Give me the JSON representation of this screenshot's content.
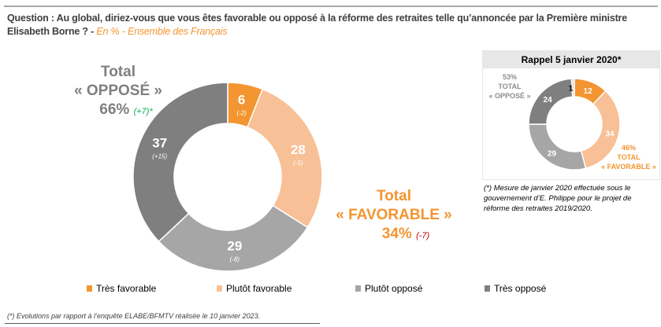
{
  "header": {
    "question": "Question : Au global, diriez-vous que vous êtes favorable ou opposé à la réforme des retraites telle qu’annoncée par la Première ministre Elisabeth Borne ? - ",
    "subtitle": "En % - Ensemble des Français"
  },
  "totals": {
    "opposed": {
      "line1": "Total",
      "line2": "« OPPOSÉ »",
      "value": "66%",
      "evolution": "(+7)*"
    },
    "favorable": {
      "line1": "Total",
      "line2": "« FAVORABLE »",
      "value": "34%",
      "evolution": "(-7)"
    }
  },
  "chart_data": [
    {
      "type": "pie",
      "donut": true,
      "categories": [
        "Très favorable",
        "Plutôt favorable",
        "Plutôt opposé",
        "Très opposé"
      ],
      "values": [
        6,
        28,
        29,
        37
      ],
      "evolutions": [
        "(-2)",
        "(-5)",
        "(-8)",
        "(+15)"
      ],
      "colors": [
        "#F39530",
        "#F8C096",
        "#A6A6A6",
        "#7F7F7F"
      ],
      "legend": "bottom"
    },
    {
      "type": "pie",
      "donut": true,
      "title": "Rappel 5 janvier 2020*",
      "categories": [
        "Très favorable",
        "Plutôt favorable",
        "Plutôt opposé",
        "Très opposé",
        ""
      ],
      "values": [
        12,
        34,
        29,
        24,
        1
      ],
      "colors": [
        "#F39530",
        "#F8C096",
        "#A6A6A6",
        "#7F7F7F",
        "#D9D9D9"
      ]
    }
  ],
  "rappel": {
    "title": "Rappel 5 janvier 2020*",
    "opposed": [
      "53%",
      "TOTAL",
      "« OPPOSÉ »"
    ],
    "favorable": [
      "46%",
      "TOTAL",
      "« FAVORABLE »"
    ],
    "note": "(*) Mesure de janvier 2020 effectuée sous le gouvernement d’E. Philippe pour le projet de réforme des retraites 2019/2020."
  },
  "legend": [
    "Très favorable",
    "Plutôt favorable",
    "Plutôt opposé",
    "Très opposé"
  ],
  "footnote": "(*) Evolutions par rapport à l’enquête ELABE/BFMTV réalisée le 10 janvier 2023."
}
